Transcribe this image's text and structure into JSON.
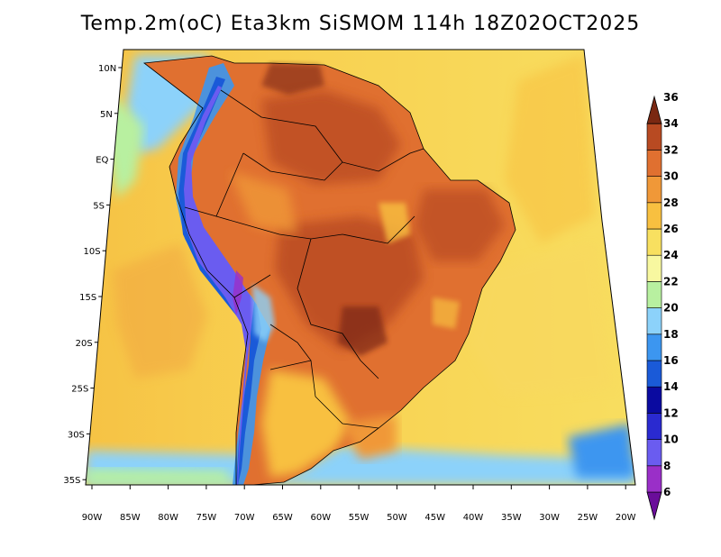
{
  "title": "Temp.2m(oC) Eta3km SiSMOM 114h 18Z02OCT2025",
  "latitude_ticks": [
    "10N",
    "5N",
    "EQ",
    "5S",
    "10S",
    "15S",
    "20S",
    "25S",
    "30S",
    "35S"
  ],
  "longitude_ticks": [
    "90W",
    "85W",
    "80W",
    "75W",
    "70W",
    "65W",
    "60W",
    "55W",
    "50W",
    "45W",
    "40W",
    "35W",
    "30W",
    "25W",
    "20W"
  ],
  "colorbar": {
    "unit": "oC",
    "levels": [
      6,
      8,
      10,
      12,
      14,
      16,
      18,
      20,
      22,
      24,
      26,
      28,
      30,
      32,
      34,
      36
    ],
    "labels": [
      "6",
      "8",
      "10",
      "12",
      "14",
      "16",
      "18",
      "20",
      "22",
      "24",
      "26",
      "28",
      "30",
      "32",
      "34",
      "36"
    ],
    "colors": [
      "#6a0d9a",
      "#9a2fc8",
      "#6a5cf0",
      "#2a2ad0",
      "#0a0aa0",
      "#1a5ad8",
      "#3c96f0",
      "#8cd2fa",
      "#b8f0a0",
      "#f8f8a0",
      "#f8e060",
      "#f8c040",
      "#f09838",
      "#e07030",
      "#b84a22",
      "#7a2812"
    ]
  }
}
